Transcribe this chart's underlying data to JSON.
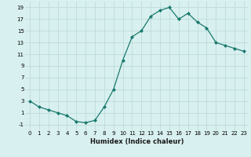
{
  "x": [
    0,
    1,
    2,
    3,
    4,
    5,
    6,
    7,
    8,
    9,
    10,
    11,
    12,
    13,
    14,
    15,
    16,
    17,
    18,
    19,
    20,
    21,
    22,
    23
  ],
  "y": [
    3,
    2,
    1.5,
    1,
    0.5,
    -0.5,
    -0.7,
    -0.3,
    2,
    5,
    10,
    14,
    15,
    17.5,
    18.5,
    19,
    17,
    18,
    16.5,
    15.5,
    13,
    12.5,
    12,
    11.5
  ],
  "line_color": "#1a7a6e",
  "marker": "D",
  "marker_size": 2.0,
  "bg_color": "#d8f0ef",
  "grid_color_major": "#b8d8d6",
  "grid_color_minor": "#c8e8e6",
  "xlabel": "Humidex (Indice chaleur)",
  "xlim": [
    -0.5,
    23.5
  ],
  "ylim": [
    -2,
    20
  ],
  "yticks": [
    -1,
    1,
    3,
    5,
    7,
    9,
    11,
    13,
    15,
    17,
    19
  ],
  "xticks": [
    0,
    1,
    2,
    3,
    4,
    5,
    6,
    7,
    8,
    9,
    10,
    11,
    12,
    13,
    14,
    15,
    16,
    17,
    18,
    19,
    20,
    21,
    22,
    23
  ],
  "tick_fontsize": 5.0,
  "xlabel_fontsize": 6.0,
  "linewidth": 0.9
}
